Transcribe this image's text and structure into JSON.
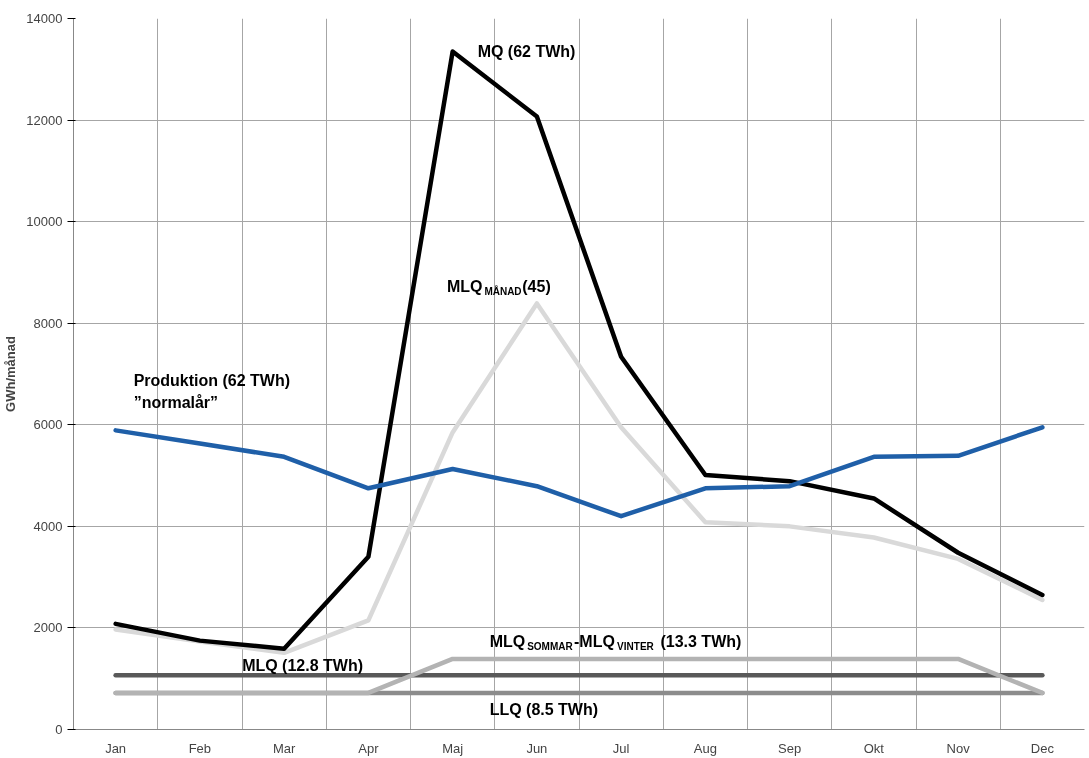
{
  "chart_data": {
    "type": "line",
    "ylabel": "GWh/månad",
    "categories": [
      "Jan",
      "Feb",
      "Mar",
      "Apr",
      "Maj",
      "Jun",
      "Jul",
      "Aug",
      "Sep",
      "Okt",
      "Nov",
      "Dec"
    ],
    "ylim": [
      0,
      14000
    ],
    "yticks": [
      0,
      2000,
      4000,
      6000,
      8000,
      10000,
      12000,
      14000
    ],
    "grid": true,
    "series": [
      {
        "name": "Produktion (62 TWh)\n”normalår”",
        "color": "#1f5fa8",
        "values": [
          5890,
          5630,
          5370,
          4750,
          5130,
          4790,
          4200,
          4750,
          4790,
          5370,
          5390,
          5950
        ]
      },
      {
        "name": "MQ (62 TWh)",
        "color": "#000000",
        "values": [
          2080,
          1750,
          1590,
          3400,
          13350,
          12070,
          7340,
          5010,
          4890,
          4550,
          3480,
          2650
        ]
      },
      {
        "name": "MLQ$_{MÅNAD}$(45)",
        "color": "#d9d9d9",
        "values": [
          1970,
          1730,
          1510,
          2150,
          5850,
          8390,
          5950,
          4080,
          4000,
          3780,
          3360,
          2550
        ]
      },
      {
        "name": "MLQ (12.8 TWh)",
        "color": "#595959",
        "values": [
          1070,
          1070,
          1070,
          1070,
          1070,
          1070,
          1070,
          1070,
          1070,
          1070,
          1070,
          1070
        ]
      },
      {
        "name": "LLQ (8.5 TWh)",
        "color": "#8c8c8c",
        "values": [
          720,
          720,
          720,
          720,
          720,
          720,
          720,
          720,
          720,
          720,
          720,
          720
        ]
      },
      {
        "name": "MLQ$_{SOMMAR}$-MLQ$_{VINTER}$ (13.3 TWh)",
        "color": "#b3b3b3",
        "values": [
          720,
          720,
          720,
          720,
          1390,
          1390,
          1390,
          1390,
          1390,
          1390,
          1390,
          720
        ]
      }
    ]
  }
}
